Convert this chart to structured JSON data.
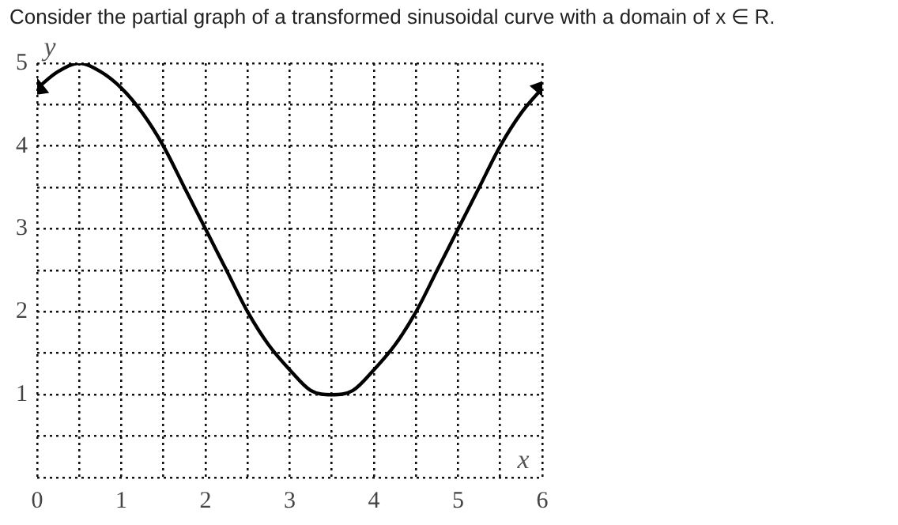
{
  "chart_data": {
    "type": "line",
    "title": "Consider the partial graph of a transformed sinusoidal curve with a domain of x ∈ R.",
    "xlabel": "x",
    "ylabel": "y",
    "series": [
      {
        "color": "#000000",
        "x": [
          0,
          0.25,
          0.5,
          0.75,
          1,
          1.25,
          1.5,
          1.75,
          2,
          2.25,
          2.5,
          2.75,
          3,
          3.25,
          3.5,
          3.75,
          4,
          4.25,
          4.5,
          4.75,
          5,
          5.25,
          5.5,
          5.75,
          6
        ],
        "values": [
          4.7,
          4.9,
          5,
          4.9,
          4.7,
          4.4,
          4,
          3.5,
          3,
          2.5,
          2,
          1.6,
          1.3,
          1.05,
          1,
          1.05,
          1.3,
          1.6,
          2,
          2.5,
          3,
          3.5,
          4,
          4.4,
          4.7
        ]
      }
    ],
    "xlim": [
      0,
      6
    ],
    "ylim": [
      0,
      5
    ],
    "xticks": [
      0,
      {
        "value": 0.5,
        "label": null
      },
      1,
      {
        "value": 1.5,
        "label": null
      },
      2,
      {
        "value": 2.5,
        "label": null
      },
      3,
      {
        "value": 3.5,
        "label": null
      },
      4,
      {
        "value": 4.5,
        "label": null
      },
      5,
      {
        "value": 5.5,
        "label": null
      },
      6
    ],
    "yticks": [
      {
        "value": 0,
        "label": null
      },
      {
        "value": 0.5,
        "label": null
      },
      1,
      {
        "value": 1.5,
        "label": null
      },
      2,
      {
        "value": 2.5,
        "label": null
      },
      3,
      {
        "value": 3.5,
        "label": null
      },
      4,
      {
        "value": 4.5,
        "label": null
      },
      5
    ],
    "grid": true,
    "legend": false,
    "line_style": "solid"
  }
}
